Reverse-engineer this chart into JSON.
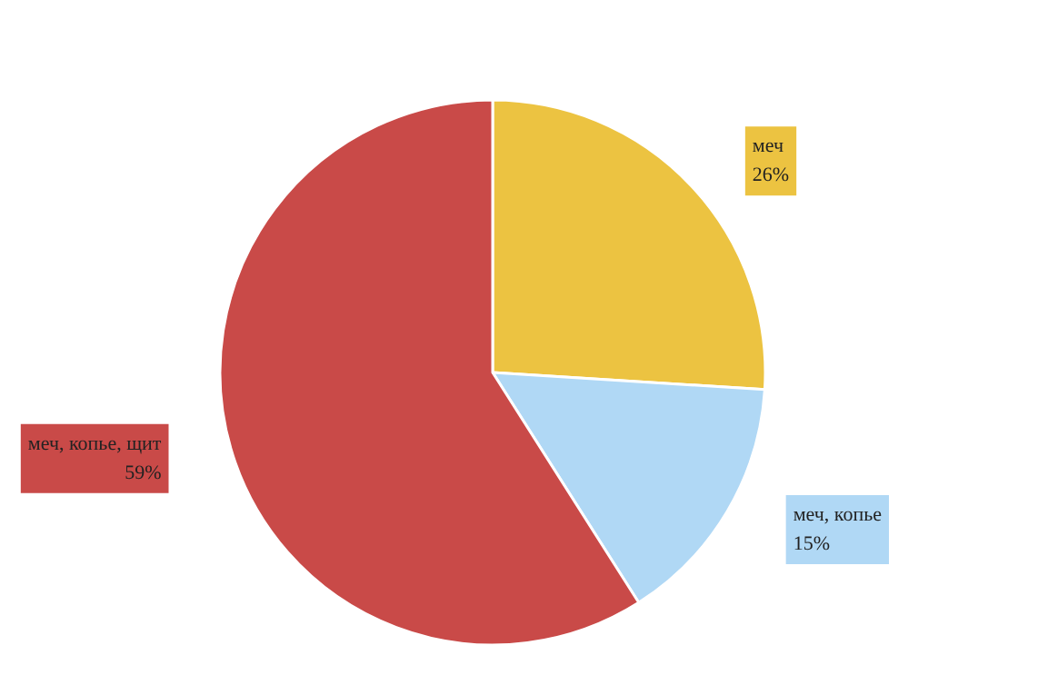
{
  "chart_data": {
    "type": "pie",
    "categories": [
      "меч",
      "меч, копье",
      "меч, копье, щит"
    ],
    "values": [
      26,
      15,
      59
    ],
    "value_labels": [
      "26%",
      "15%",
      "59%"
    ],
    "colors": [
      "#ecc341",
      "#b0d8f5",
      "#c94a48"
    ],
    "legend": false
  }
}
